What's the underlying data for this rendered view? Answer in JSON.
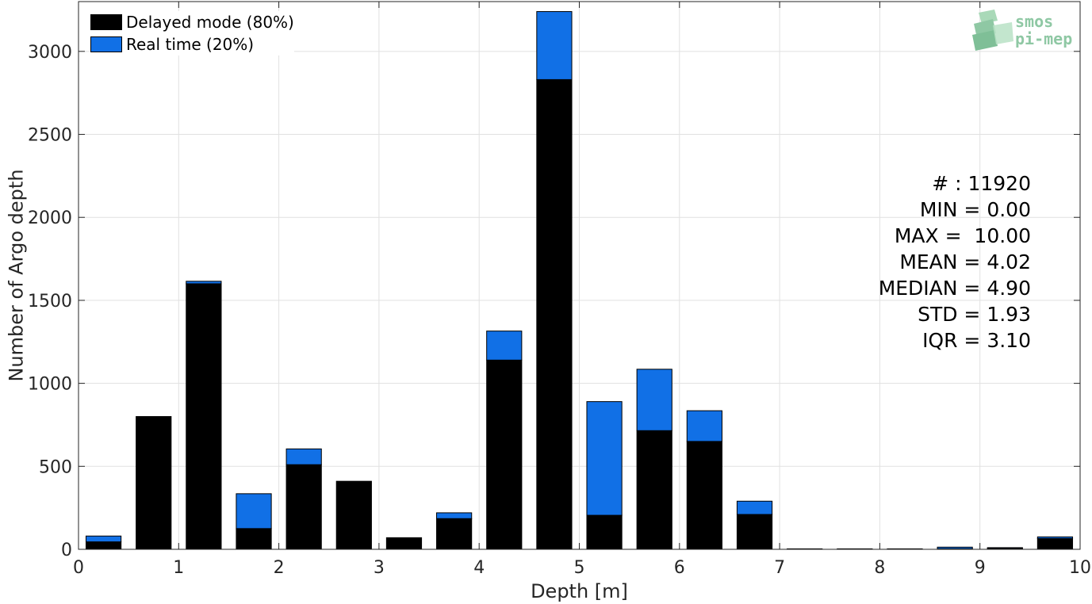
{
  "chart_data": {
    "type": "bar",
    "stacked": true,
    "xlabel": "Depth [m]",
    "ylabel": "Number of Argo depth",
    "xlim": [
      0,
      10
    ],
    "ylim": [
      0,
      3300
    ],
    "xticks": [
      0,
      1,
      2,
      3,
      4,
      5,
      6,
      7,
      8,
      9,
      10
    ],
    "yticks": [
      0,
      500,
      1000,
      1500,
      2000,
      2500,
      3000
    ],
    "grid": true,
    "legend_position": "top-left",
    "bin_width": 0.5,
    "bar_width": 0.35,
    "x": [
      0.25,
      0.75,
      1.25,
      1.75,
      2.25,
      2.75,
      3.25,
      3.75,
      4.25,
      4.75,
      5.25,
      5.75,
      6.25,
      6.75,
      7.25,
      7.75,
      8.25,
      8.75,
      9.25,
      9.75
    ],
    "series": [
      {
        "name": "Delayed mode (80%)",
        "color": "#000000",
        "values": [
          45,
          800,
          1600,
          125,
          510,
          410,
          70,
          185,
          1140,
          2830,
          205,
          715,
          650,
          210,
          3,
          3,
          3,
          3,
          5,
          65
        ]
      },
      {
        "name": "Real time (20%)",
        "color": "#1170e6",
        "values": [
          35,
          0,
          15,
          210,
          95,
          0,
          0,
          35,
          175,
          410,
          685,
          370,
          185,
          80,
          0,
          0,
          0,
          10,
          5,
          10
        ]
      }
    ],
    "annotations": [
      "# : 11920",
      "MIN = 0.00",
      "MAX =  10.00",
      "MEAN = 4.02",
      "MEDIAN = 4.90",
      "STD = 1.93",
      "IQR = 3.10"
    ]
  },
  "logo": {
    "line1": "smos",
    "line2": "pi-mep"
  }
}
